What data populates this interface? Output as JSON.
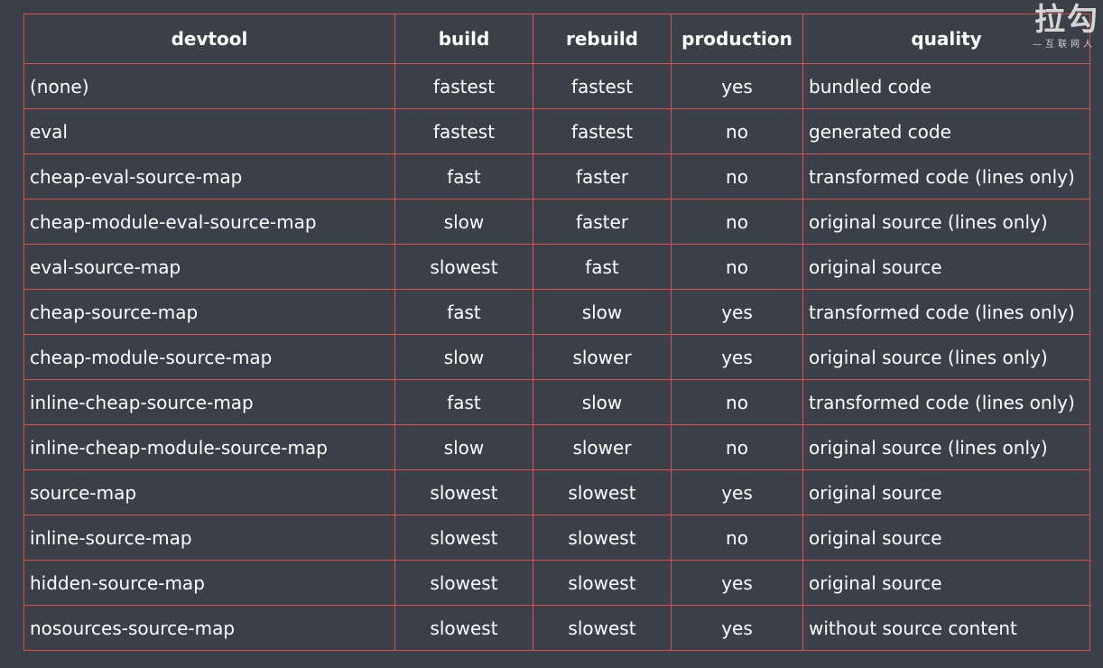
{
  "watermark": {
    "logo": "拉勾",
    "tagline": "—互联网人"
  },
  "table": {
    "headers": {
      "devtool": "devtool",
      "build": "build",
      "rebuild": "rebuild",
      "production": "production",
      "quality": "quality"
    },
    "rows": [
      {
        "devtool": "(none)",
        "build": "fastest",
        "rebuild": "fastest",
        "production": "yes",
        "quality": "bundled code"
      },
      {
        "devtool": "eval",
        "build": "fastest",
        "rebuild": "fastest",
        "production": "no",
        "quality": "generated code"
      },
      {
        "devtool": "cheap-eval-source-map",
        "build": "fast",
        "rebuild": "faster",
        "production": "no",
        "quality": "transformed code (lines only)"
      },
      {
        "devtool": "cheap-module-eval-source-map",
        "build": "slow",
        "rebuild": "faster",
        "production": "no",
        "quality": "original source (lines only)"
      },
      {
        "devtool": "eval-source-map",
        "build": "slowest",
        "rebuild": "fast",
        "production": "no",
        "quality": "original source"
      },
      {
        "devtool": "cheap-source-map",
        "build": "fast",
        "rebuild": "slow",
        "production": "yes",
        "quality": "transformed code (lines only)"
      },
      {
        "devtool": "cheap-module-source-map",
        "build": "slow",
        "rebuild": "slower",
        "production": "yes",
        "quality": "original source (lines only)"
      },
      {
        "devtool": "inline-cheap-source-map",
        "build": "fast",
        "rebuild": "slow",
        "production": "no",
        "quality": "transformed code (lines only)"
      },
      {
        "devtool": "inline-cheap-module-source-map",
        "build": "slow",
        "rebuild": "slower",
        "production": "no",
        "quality": "original source (lines only)"
      },
      {
        "devtool": "source-map",
        "build": "slowest",
        "rebuild": "slowest",
        "production": "yes",
        "quality": "original source"
      },
      {
        "devtool": "inline-source-map",
        "build": "slowest",
        "rebuild": "slowest",
        "production": "no",
        "quality": "original source"
      },
      {
        "devtool": "hidden-source-map",
        "build": "slowest",
        "rebuild": "slowest",
        "production": "yes",
        "quality": "original source"
      },
      {
        "devtool": "nosources-source-map",
        "build": "slowest",
        "rebuild": "slowest",
        "production": "yes",
        "quality": "without source content"
      }
    ]
  }
}
